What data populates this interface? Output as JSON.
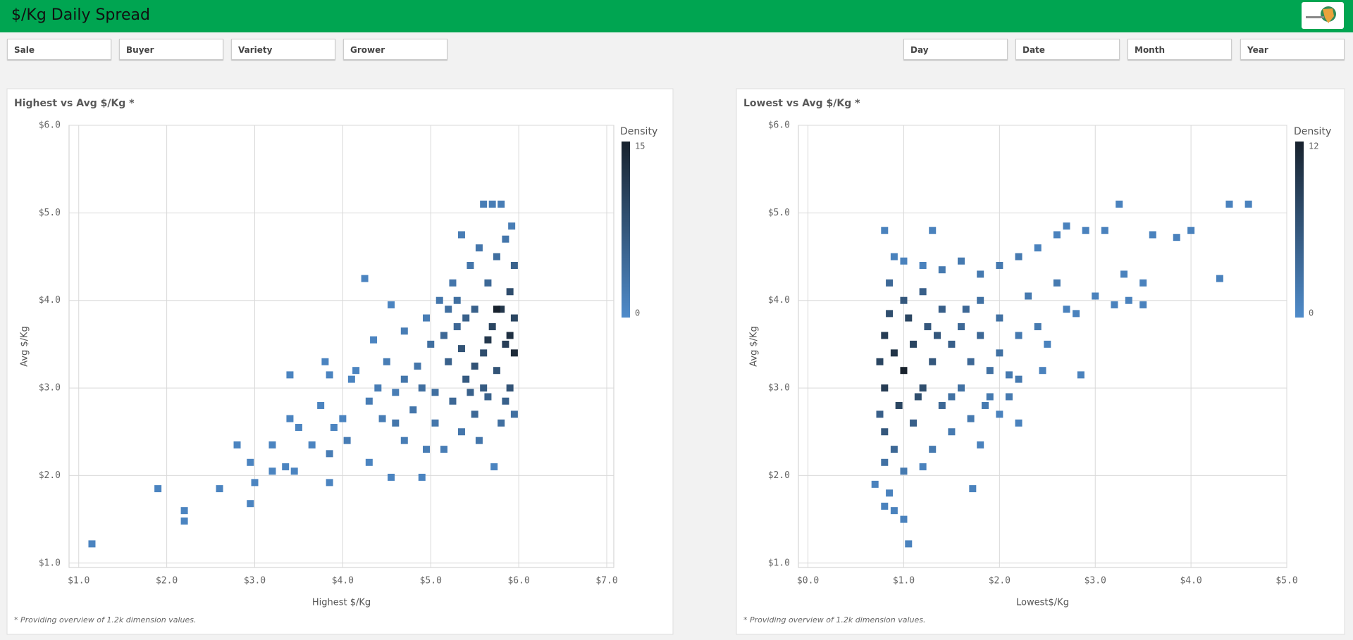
{
  "header": {
    "title": "$/Kg Daily Spread"
  },
  "filters": [
    "Sale",
    "Buyer",
    "Variety",
    "Grower"
  ],
  "date_filters": [
    "Day",
    "Date",
    "Month",
    "Year"
  ],
  "chart_data": [
    {
      "type": "density",
      "title": "Highest vs Avg $/Kg *",
      "x_label": "Highest $/Kg",
      "y_label": "Avg $/Kg",
      "footnote": "* Providing overview of 1.2k dimension values.",
      "legend_title": "Density",
      "density_range": [
        0,
        15
      ],
      "color_low": "#4f8bca",
      "color_high": "#18222d",
      "grid": true,
      "xlim": [
        0.89,
        7.08
      ],
      "ylim": [
        0.95,
        6.0
      ],
      "xticks": [
        {
          "value": 1,
          "label": "$1.0"
        },
        {
          "value": 2,
          "label": "$2.0"
        },
        {
          "value": 3,
          "label": "$3.0"
        },
        {
          "value": 4,
          "label": "$4.0"
        },
        {
          "value": 5,
          "label": "$5.0"
        },
        {
          "value": 6,
          "label": "$6.0"
        },
        {
          "value": 7,
          "label": "$7.0"
        }
      ],
      "yticks": [
        {
          "value": 1,
          "label": "$1.0"
        },
        {
          "value": 2,
          "label": "$2.0"
        },
        {
          "value": 3,
          "label": "$3.0"
        },
        {
          "value": 4,
          "label": "$4.0"
        },
        {
          "value": 5,
          "label": "$5.0"
        },
        {
          "value": 6,
          "label": "$6.0"
        }
      ],
      "x": [
        1.15,
        1.9,
        2.2,
        2.2,
        2.6,
        2.8,
        2.95,
        3.0,
        2.95,
        3.2,
        3.2,
        3.35,
        3.45,
        3.4,
        3.4,
        3.5,
        3.65,
        3.75,
        3.8,
        3.85,
        3.85,
        3.85,
        3.9,
        4.0,
        4.05,
        4.1,
        4.15,
        4.25,
        4.3,
        4.3,
        4.35,
        4.45,
        4.5,
        4.55,
        4.55,
        4.6,
        4.7,
        4.7,
        4.8,
        4.85,
        4.9,
        4.95,
        4.95,
        5.0,
        5.05,
        5.1,
        5.15,
        5.2,
        5.25,
        5.25,
        5.3,
        5.35,
        5.35,
        5.4,
        5.45,
        5.5,
        5.5,
        5.55,
        5.6,
        5.6,
        5.65,
        5.65,
        5.7,
        5.7,
        5.72,
        5.75,
        5.75,
        5.8,
        5.8,
        5.8,
        5.85,
        5.85,
        5.9,
        5.9,
        5.95,
        5.95,
        5.95,
        5.95,
        5.92,
        5.6,
        5.4,
        5.2,
        5.55,
        5.15,
        5.35,
        5.5,
        5.65,
        5.75,
        5.9,
        5.3,
        4.9,
        4.7,
        5.05,
        4.6,
        4.4,
        5.85,
        5.45
      ],
      "values": [
        1.22,
        1.85,
        1.6,
        1.48,
        1.85,
        2.35,
        1.68,
        1.92,
        2.15,
        2.35,
        2.05,
        2.1,
        2.05,
        3.15,
        2.65,
        2.55,
        2.35,
        2.8,
        3.3,
        3.15,
        1.92,
        2.25,
        2.55,
        2.65,
        2.4,
        3.1,
        3.2,
        4.25,
        2.15,
        2.85,
        3.55,
        2.65,
        3.3,
        1.98,
        3.95,
        2.95,
        3.65,
        2.4,
        2.75,
        3.25,
        1.98,
        2.3,
        3.8,
        3.5,
        2.95,
        4.0,
        2.3,
        3.3,
        2.85,
        4.2,
        3.7,
        2.5,
        4.75,
        3.1,
        4.4,
        3.9,
        2.7,
        4.6,
        3.4,
        5.1,
        2.9,
        4.2,
        3.7,
        5.1,
        2.1,
        3.2,
        4.5,
        2.6,
        3.9,
        5.1,
        3.5,
        4.7,
        3.0,
        4.1,
        3.4,
        4.4,
        2.7,
        3.8,
        4.85,
        3.0,
        3.8,
        3.9,
        2.4,
        3.6,
        3.45,
        3.25,
        3.55,
        3.9,
        3.6,
        4.0,
        3.0,
        3.1,
        2.6,
        2.6,
        3.0,
        2.85,
        2.95
      ],
      "density": [
        1,
        1,
        1,
        1,
        1,
        1,
        1,
        1,
        1,
        1,
        1,
        1,
        1,
        1,
        1,
        1,
        1,
        1,
        1,
        1,
        1,
        2,
        1,
        1,
        2,
        1,
        1,
        1,
        1,
        2,
        1,
        2,
        2,
        1,
        1,
        2,
        2,
        2,
        3,
        3,
        1,
        2,
        2,
        4,
        4,
        3,
        2,
        6,
        5,
        3,
        5,
        3,
        2,
        7,
        3,
        6,
        5,
        3,
        9,
        2,
        6,
        5,
        10,
        2,
        1,
        8,
        4,
        4,
        12,
        2,
        11,
        3,
        8,
        9,
        14,
        6,
        4,
        10,
        2,
        7,
        6,
        4,
        3,
        5,
        8,
        8,
        12,
        15,
        13,
        4,
        4,
        3,
        3,
        3,
        2,
        6,
        6
      ]
    },
    {
      "type": "density",
      "title": "Lowest vs Avg $/Kg *",
      "x_label": "Lowest$/Kg",
      "y_label": "Avg $/Kg",
      "footnote": "* Providing overview of 1.2k dimension values.",
      "legend_title": "Density",
      "density_range": [
        0,
        12
      ],
      "color_low": "#4f8bca",
      "color_high": "#18222d",
      "grid": true,
      "xlim": [
        -0.1,
        5.0
      ],
      "ylim": [
        0.95,
        6.0
      ],
      "xticks": [
        {
          "value": 0,
          "label": "$0.0"
        },
        {
          "value": 1,
          "label": "$1.0"
        },
        {
          "value": 2,
          "label": "$2.0"
        },
        {
          "value": 3,
          "label": "$3.0"
        },
        {
          "value": 4,
          "label": "$4.0"
        },
        {
          "value": 5,
          "label": "$5.0"
        }
      ],
      "yticks": [
        {
          "value": 1,
          "label": "$1.0"
        },
        {
          "value": 2,
          "label": "$2.0"
        },
        {
          "value": 3,
          "label": "$3.0"
        },
        {
          "value": 4,
          "label": "$4.0"
        },
        {
          "value": 5,
          "label": "$5.0"
        },
        {
          "value": 6,
          "label": "$6.0"
        }
      ],
      "x": [
        0.7,
        0.8,
        0.85,
        0.9,
        1.0,
        1.05,
        1.72,
        1.8,
        0.8,
        1.3,
        0.9,
        1.0,
        1.2,
        1.4,
        1.6,
        1.8,
        2.0,
        2.2,
        2.4,
        2.6,
        2.7,
        2.9,
        3.1,
        3.25,
        3.6,
        3.85,
        4.0,
        4.4,
        4.6,
        4.3,
        3.5,
        3.3,
        3.0,
        3.2,
        3.35,
        3.5,
        2.6,
        2.8,
        2.5,
        2.45,
        2.85,
        2.2,
        2.0,
        1.8,
        1.6,
        1.4,
        1.2,
        1.0,
        0.85,
        0.8,
        0.9,
        1.0,
        0.8,
        0.95,
        0.8,
        0.9,
        0.8,
        1.1,
        1.2,
        1.1,
        1.3,
        1.4,
        1.5,
        1.6,
        1.7,
        1.8,
        1.9,
        2.0,
        2.1,
        2.2,
        2.1,
        1.85,
        1.7,
        1.5,
        1.3,
        1.2,
        1.0,
        1.5,
        1.25,
        1.05,
        0.85,
        0.75,
        0.75,
        1.15,
        1.35,
        1.65,
        2.3,
        2.4,
        2.7,
        2.2,
        2.0,
        1.9
      ],
      "values": [
        1.9,
        1.65,
        1.8,
        1.6,
        1.5,
        1.22,
        1.85,
        2.35,
        4.8,
        4.8,
        4.5,
        4.45,
        4.4,
        4.35,
        4.45,
        4.3,
        4.4,
        4.5,
        4.6,
        4.75,
        4.85,
        4.8,
        4.8,
        5.1,
        4.75,
        4.72,
        4.8,
        5.1,
        5.1,
        4.25,
        4.2,
        4.3,
        4.05,
        3.95,
        4.0,
        3.95,
        4.2,
        3.85,
        3.5,
        3.2,
        3.15,
        3.6,
        3.8,
        4.0,
        3.7,
        3.9,
        4.1,
        4.0,
        4.2,
        3.6,
        3.4,
        3.2,
        3.0,
        2.8,
        2.5,
        2.3,
        2.15,
        3.5,
        3.0,
        2.6,
        3.3,
        2.8,
        3.5,
        3.0,
        3.3,
        3.6,
        3.2,
        3.4,
        2.9,
        2.6,
        3.15,
        2.8,
        2.65,
        2.5,
        2.3,
        2.1,
        2.05,
        2.9,
        3.7,
        3.8,
        3.85,
        3.3,
        2.7,
        2.9,
        3.6,
        3.9,
        4.05,
        3.7,
        3.9,
        3.1,
        2.7,
        2.9
      ],
      "density": [
        1,
        1,
        1,
        1,
        1,
        1,
        1,
        1,
        1,
        1,
        1,
        1,
        1,
        2,
        2,
        2,
        2,
        2,
        1,
        1,
        1,
        1,
        1,
        1,
        1,
        1,
        1,
        1,
        1,
        1,
        1,
        1,
        1,
        1,
        1,
        1,
        2,
        1,
        1,
        1,
        1,
        2,
        3,
        3,
        4,
        5,
        5,
        6,
        4,
        9,
        10,
        12,
        9,
        8,
        6,
        4,
        3,
        8,
        7,
        5,
        6,
        4,
        5,
        3,
        4,
        4,
        3,
        3,
        2,
        1,
        2,
        2,
        2,
        2,
        2,
        1,
        2,
        3,
        6,
        8,
        7,
        8,
        5,
        7,
        6,
        4,
        2,
        2,
        1,
        2,
        1,
        2
      ]
    }
  ]
}
